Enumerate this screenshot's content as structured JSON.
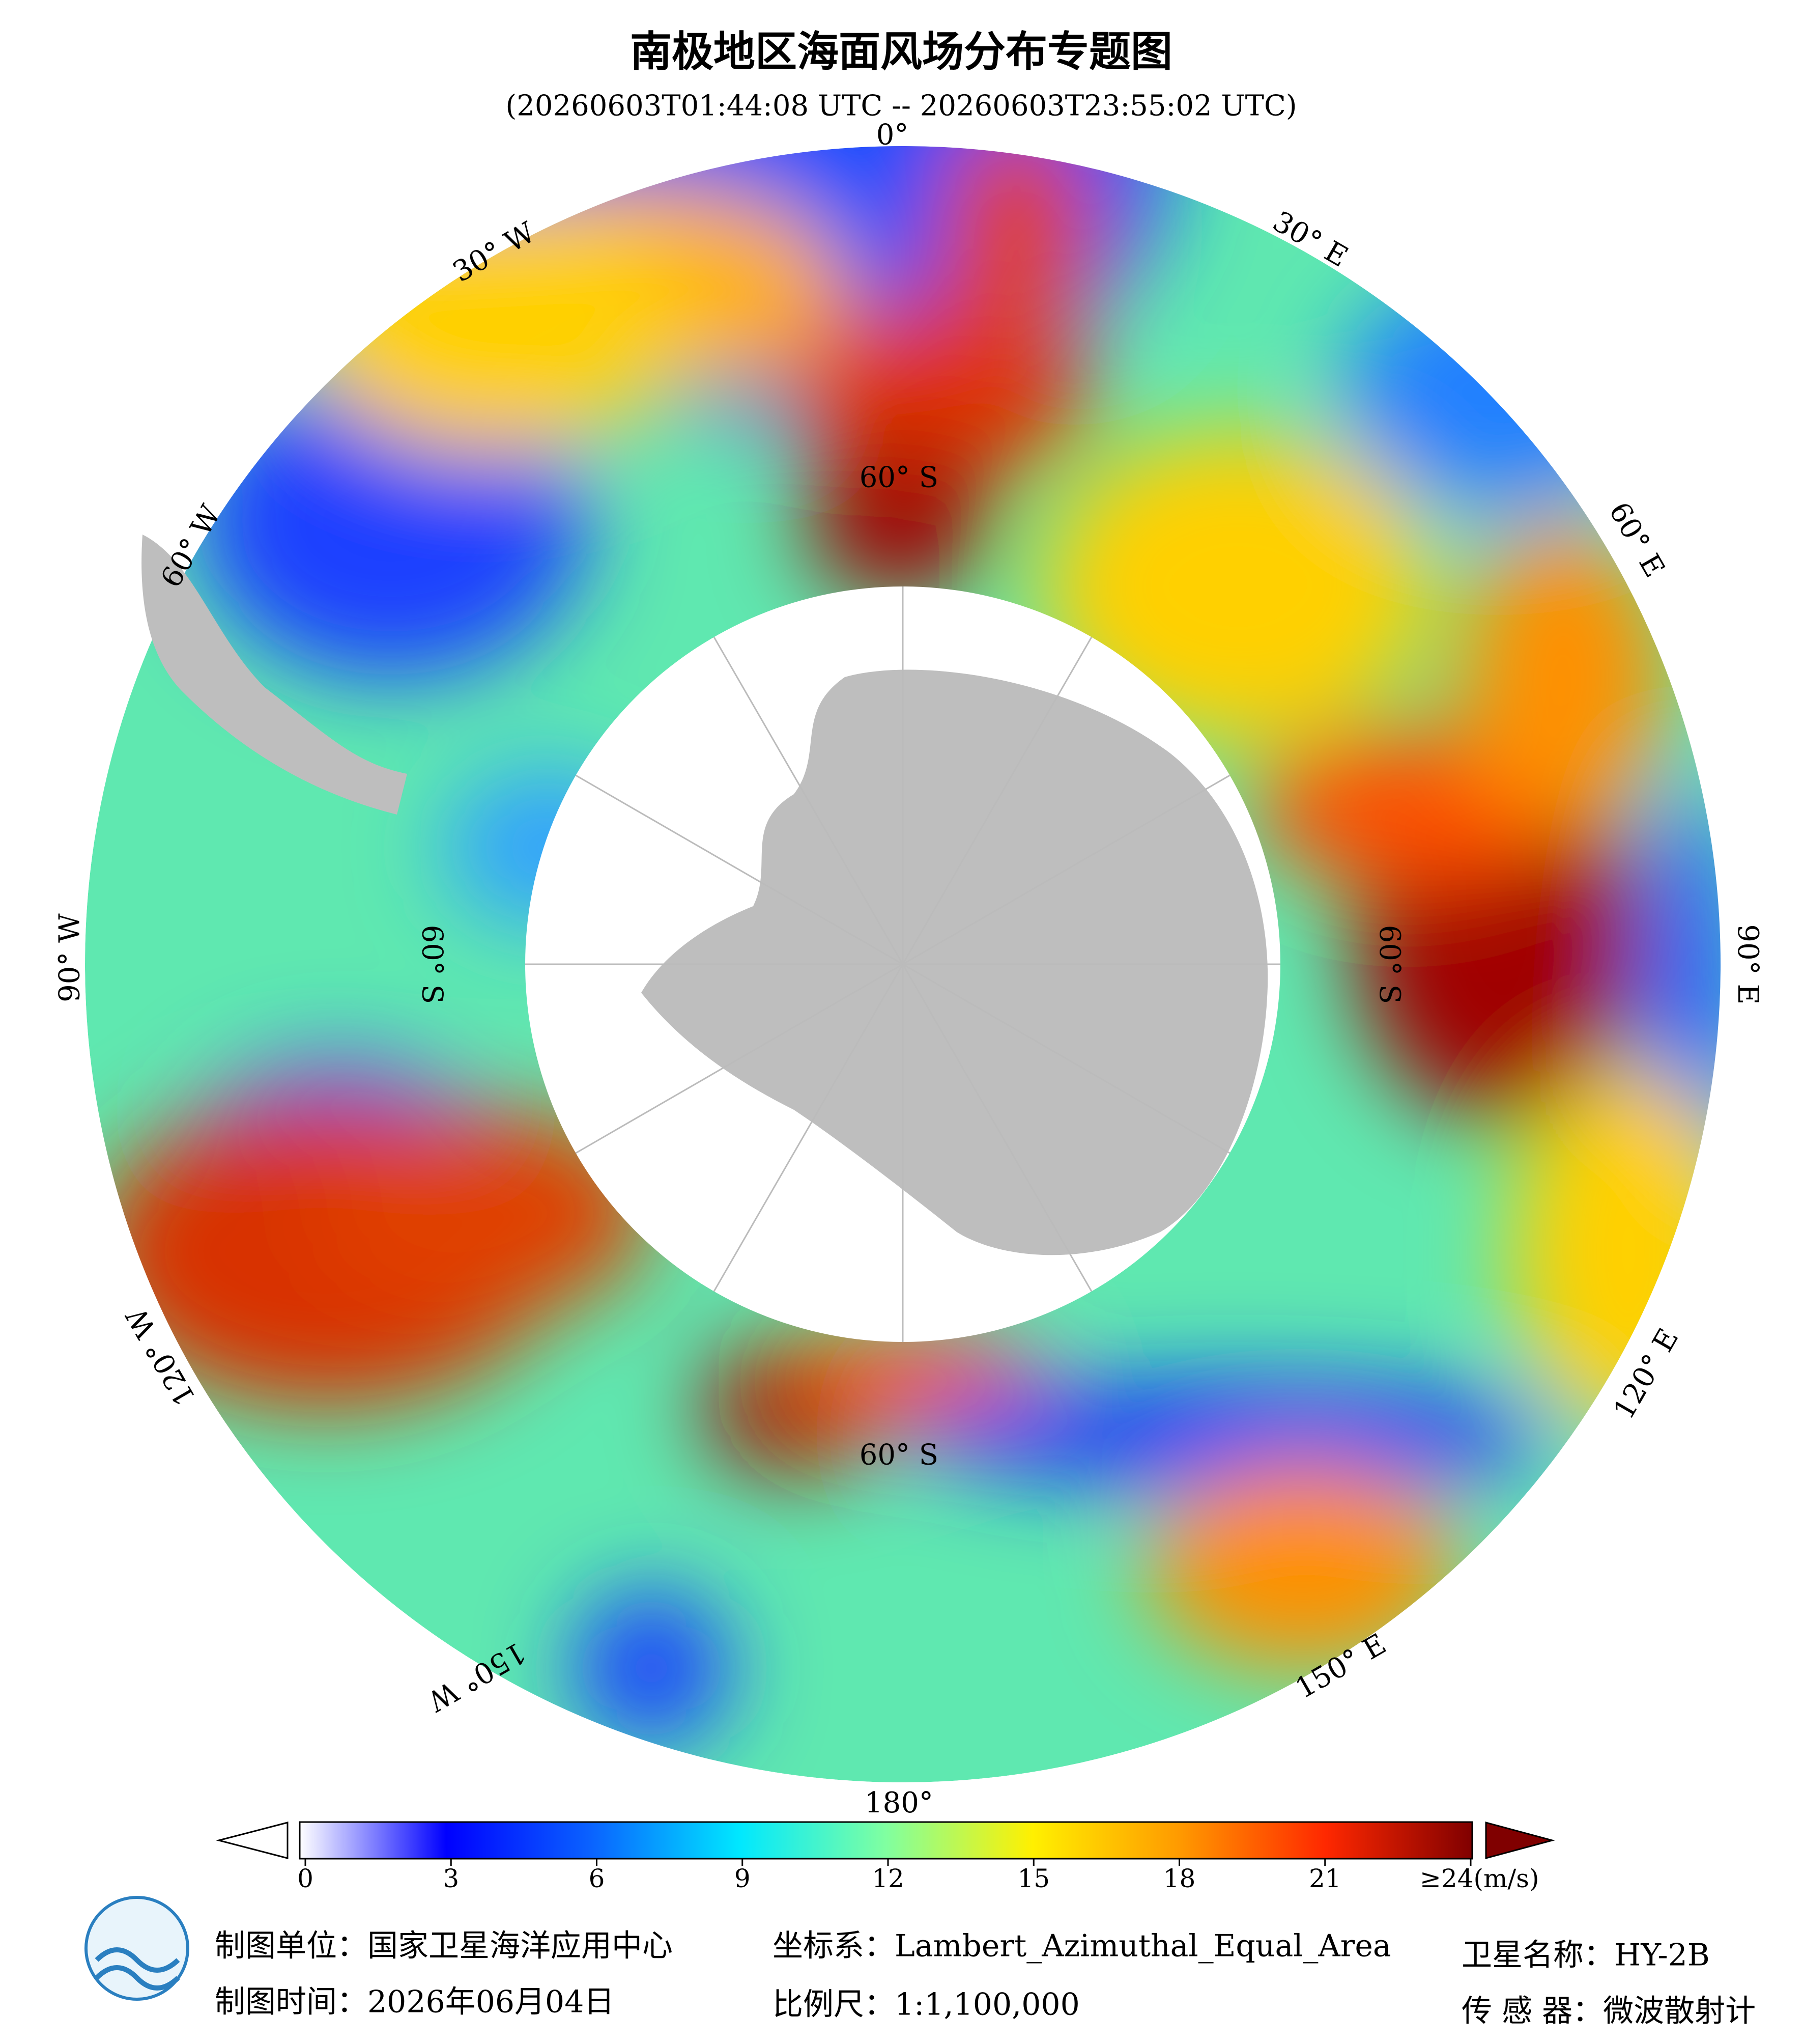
{
  "header": {
    "title": "南极地区海面风场分布专题图",
    "subtitle": "(20260603T01:44:08 UTC -- 20260603T23:55:02 UTC)"
  },
  "map": {
    "longitude_labels": [
      "0°",
      "30° E",
      "60° E",
      "90° E",
      "120° E",
      "150° E",
      "180°",
      "150° W",
      "120° W",
      "90° W",
      "60° W",
      "30° W"
    ],
    "latitude_labels": [
      "60° S",
      "60° S",
      "60° S",
      "60° S"
    ]
  },
  "colorbar": {
    "range": [
      0,
      24
    ],
    "ticks": [
      0,
      3,
      6,
      9,
      12,
      15,
      18,
      21,
      {
        "value": 24,
        "label": "≥24(m/s)"
      }
    ]
  },
  "footer": {
    "unit": "制图单位：国家卫星海洋应用中心",
    "date": "制图时间：2026年06月04日",
    "crs": "坐标系：Lambert_Azimuthal_Equal_Area",
    "scale": "比例尺：1:1,100,000",
    "satellite": "卫星名称：HY-2B",
    "sensor": "传 感 器：微波散射计"
  }
}
